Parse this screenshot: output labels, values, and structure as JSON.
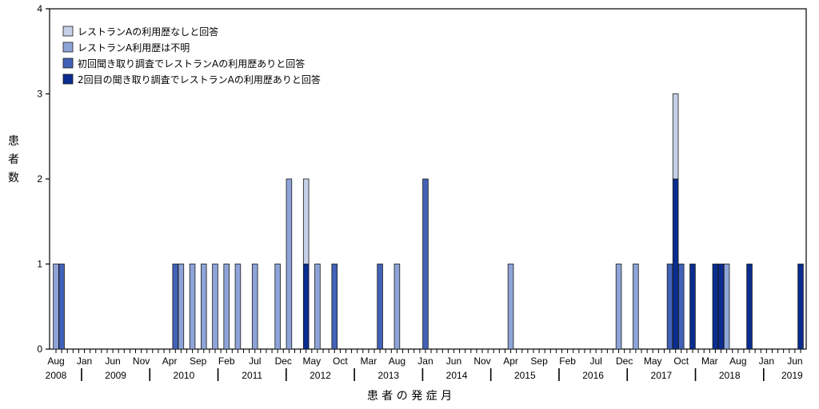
{
  "chart_data": {
    "type": "bar",
    "stacked": true,
    "xlabel": "患 者 の 発 症 月",
    "ylabel_chars": [
      "患",
      "者",
      "数"
    ],
    "ylim": [
      0,
      4
    ],
    "yticks": [
      "0",
      "1",
      "2",
      "3",
      "4"
    ],
    "x_start": "2008-08",
    "x_end": "2019-07",
    "month_labels": [
      {
        "month": "2008-08",
        "label": "Aug"
      },
      {
        "month": "2009-01",
        "label": "Jan"
      },
      {
        "month": "2009-06",
        "label": "Jun"
      },
      {
        "month": "2009-11",
        "label": "Nov"
      },
      {
        "month": "2010-04",
        "label": "Apr"
      },
      {
        "month": "2010-09",
        "label": "Sep"
      },
      {
        "month": "2011-02",
        "label": "Feb"
      },
      {
        "month": "2011-07",
        "label": "Jul"
      },
      {
        "month": "2011-12",
        "label": "Dec"
      },
      {
        "month": "2012-05",
        "label": "May"
      },
      {
        "month": "2012-10",
        "label": "Oct"
      },
      {
        "month": "2013-03",
        "label": "Mar"
      },
      {
        "month": "2013-08",
        "label": "Aug"
      },
      {
        "month": "2014-01",
        "label": "Jan"
      },
      {
        "month": "2014-06",
        "label": "Jun"
      },
      {
        "month": "2014-11",
        "label": "Nov"
      },
      {
        "month": "2015-04",
        "label": "Apr"
      },
      {
        "month": "2015-09",
        "label": "Sep"
      },
      {
        "month": "2016-02",
        "label": "Feb"
      },
      {
        "month": "2016-07",
        "label": "Jul"
      },
      {
        "month": "2016-12",
        "label": "Dec"
      },
      {
        "month": "2017-05",
        "label": "May"
      },
      {
        "month": "2017-10",
        "label": "Oct"
      },
      {
        "month": "2018-03",
        "label": "Mar"
      },
      {
        "month": "2018-08",
        "label": "Aug"
      },
      {
        "month": "2019-01",
        "label": "Jan"
      },
      {
        "month": "2019-06",
        "label": "Jun"
      }
    ],
    "year_labels": [
      "2008",
      "2009",
      "2010",
      "2011",
      "2012",
      "2013",
      "2014",
      "2015",
      "2016",
      "2017",
      "2018",
      "2019"
    ],
    "year_dividers": [
      "2009",
      "2010",
      "2011",
      "2012",
      "2013",
      "2014",
      "2015",
      "2016",
      "2017",
      "2018",
      "2019"
    ],
    "legend_position": "top-left",
    "series": [
      {
        "name": "レストランAの利用歴なしと回答",
        "color": "#c6d0e8"
      },
      {
        "name": "レストランA利用歴は不明",
        "color": "#8ea4d8"
      },
      {
        "name": "初回聞き取り調査でレストランAの利用歴ありと回答",
        "color": "#4262b8"
      },
      {
        "name": "2回目の聞き取り調査でレストランAの利用歴ありと回答",
        "color": "#0a2d8f"
      }
    ],
    "bars": [
      {
        "month": "2008-08",
        "values": [
          0,
          1,
          0,
          0
        ]
      },
      {
        "month": "2008-09",
        "values": [
          0,
          0,
          1,
          0
        ]
      },
      {
        "month": "2010-05",
        "values": [
          0,
          0,
          1,
          0
        ]
      },
      {
        "month": "2010-06",
        "values": [
          0,
          1,
          0,
          0
        ]
      },
      {
        "month": "2010-08",
        "values": [
          0,
          1,
          0,
          0
        ]
      },
      {
        "month": "2010-10",
        "values": [
          0,
          1,
          0,
          0
        ]
      },
      {
        "month": "2010-12",
        "values": [
          0,
          1,
          0,
          0
        ]
      },
      {
        "month": "2011-02",
        "values": [
          0,
          1,
          0,
          0
        ]
      },
      {
        "month": "2011-04",
        "values": [
          0,
          1,
          0,
          0
        ]
      },
      {
        "month": "2011-07",
        "values": [
          0,
          1,
          0,
          0
        ]
      },
      {
        "month": "2011-11",
        "values": [
          0,
          1,
          0,
          0
        ]
      },
      {
        "month": "2012-01",
        "values": [
          0,
          2,
          0,
          0
        ]
      },
      {
        "month": "2012-04",
        "values": [
          1,
          0,
          0,
          1
        ]
      },
      {
        "month": "2012-06",
        "values": [
          0,
          1,
          0,
          0
        ]
      },
      {
        "month": "2012-09",
        "values": [
          0,
          0,
          1,
          0
        ]
      },
      {
        "month": "2013-05",
        "values": [
          0,
          0,
          1,
          0
        ]
      },
      {
        "month": "2013-08",
        "values": [
          0,
          1,
          0,
          0
        ]
      },
      {
        "month": "2014-01",
        "values": [
          0,
          0,
          2,
          0
        ]
      },
      {
        "month": "2015-04",
        "values": [
          0,
          1,
          0,
          0
        ]
      },
      {
        "month": "2016-11",
        "values": [
          0,
          1,
          0,
          0
        ]
      },
      {
        "month": "2017-02",
        "values": [
          0,
          1,
          0,
          0
        ]
      },
      {
        "month": "2017-08",
        "values": [
          0,
          0,
          1,
          0
        ]
      },
      {
        "month": "2017-09",
        "values": [
          1,
          0,
          0,
          2
        ]
      },
      {
        "month": "2017-10",
        "values": [
          0,
          0,
          1,
          0
        ]
      },
      {
        "month": "2017-12",
        "values": [
          0,
          0,
          0,
          1
        ]
      },
      {
        "month": "2018-04",
        "values": [
          0,
          0,
          0,
          1
        ]
      },
      {
        "month": "2018-05",
        "values": [
          0,
          0,
          0,
          1
        ]
      },
      {
        "month": "2018-06",
        "values": [
          0,
          1,
          0,
          0
        ]
      },
      {
        "month": "2018-10",
        "values": [
          0,
          0,
          0,
          1
        ]
      },
      {
        "month": "2019-07",
        "values": [
          0,
          0,
          0,
          1
        ]
      }
    ]
  }
}
